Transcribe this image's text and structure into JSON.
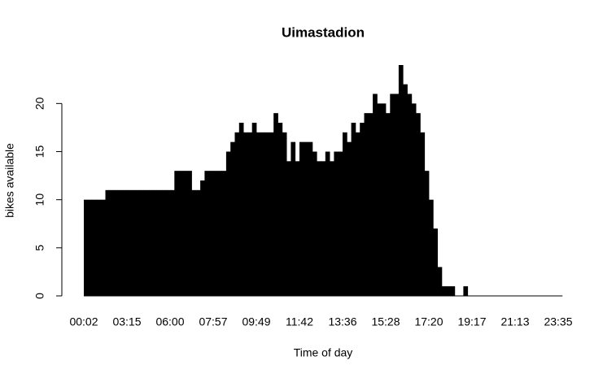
{
  "chart_data": {
    "type": "bar",
    "title": "Uimastadion",
    "x_label": "Time of day",
    "y_label": "bikes available",
    "categories": [
      "00:02",
      null,
      null,
      null,
      null,
      null,
      null,
      null,
      null,
      null,
      "03:15",
      null,
      null,
      null,
      null,
      null,
      null,
      null,
      null,
      null,
      "06:00",
      null,
      null,
      null,
      null,
      null,
      null,
      null,
      null,
      null,
      "07:57",
      null,
      null,
      null,
      null,
      null,
      null,
      null,
      null,
      null,
      "09:49",
      null,
      null,
      null,
      null,
      null,
      null,
      null,
      null,
      null,
      "11:42",
      null,
      null,
      null,
      null,
      null,
      null,
      null,
      null,
      null,
      "13:36",
      null,
      null,
      null,
      null,
      null,
      null,
      null,
      null,
      null,
      "15:28",
      null,
      null,
      null,
      null,
      null,
      null,
      null,
      null,
      null,
      "17:20",
      null,
      null,
      null,
      null,
      null,
      null,
      null,
      null,
      null,
      "19:17",
      null,
      null,
      null,
      null,
      null,
      null,
      null,
      null,
      null,
      "21:13",
      null,
      null,
      null,
      null,
      null,
      null,
      null,
      null,
      null,
      "23:35"
    ],
    "values": [
      10,
      10,
      10,
      10,
      10,
      11,
      11,
      11,
      11,
      11,
      11,
      11,
      11,
      11,
      11,
      11,
      11,
      11,
      11,
      11,
      11,
      13,
      13,
      13,
      13,
      11,
      11,
      12,
      13,
      13,
      13,
      13,
      13,
      15,
      16,
      17,
      18,
      17,
      17,
      18,
      17,
      17,
      17,
      17,
      19,
      18,
      17,
      14,
      16,
      14,
      16,
      16,
      16,
      15,
      14,
      14,
      15,
      14,
      15,
      15,
      17,
      16,
      18,
      17,
      18,
      19,
      19,
      21,
      20,
      20,
      19,
      21,
      21,
      24,
      22,
      21,
      20,
      19,
      17,
      13,
      10,
      7,
      3,
      1,
      1,
      1,
      0,
      0,
      1,
      0,
      0,
      0,
      0,
      0,
      0,
      0,
      0,
      0,
      0,
      0,
      0,
      0,
      0,
      0,
      0,
      0,
      0,
      0,
      0,
      0,
      0
    ],
    "color": "#000000",
    "ylim": [
      0,
      24
    ],
    "yticks": [
      0,
      5,
      10,
      15,
      20
    ]
  }
}
